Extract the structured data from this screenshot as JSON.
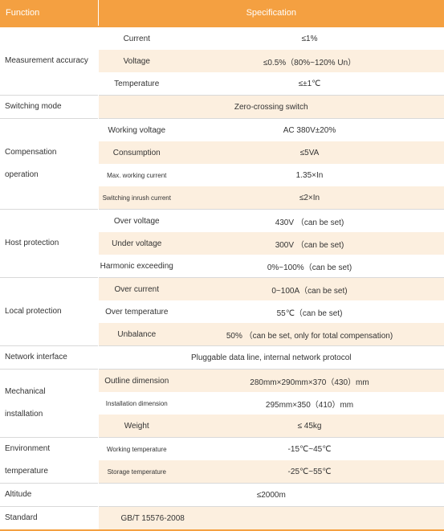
{
  "header": {
    "function": "Function",
    "specification": "Specification"
  },
  "rows": {
    "measurement": {
      "label": "Measurement accuracy",
      "items": [
        {
          "param": "Current",
          "spec": "≤1%"
        },
        {
          "param": "Voltage",
          "spec": "≤0.5%（80%~120% Un）"
        },
        {
          "param": "Temperature",
          "spec": "≤±1℃"
        }
      ]
    },
    "switching": {
      "label": "Switching mode",
      "spec": "Zero-crossing switch"
    },
    "compensation": {
      "label_line1": "Compensation",
      "label_line2": "operation",
      "items": [
        {
          "param": "Working voltage",
          "spec": "AC 380V±20%"
        },
        {
          "param": "Consumption",
          "spec": "≤5VA"
        },
        {
          "param": "Max. working current",
          "spec": "1.35×In"
        },
        {
          "param": "Switching inrush current",
          "spec": "≤2×In"
        }
      ]
    },
    "host": {
      "label": "Host protection",
      "items": [
        {
          "param": "Over voltage",
          "spec": "430V （can be set)"
        },
        {
          "param": "Under voltage",
          "spec": "300V （can be set)"
        },
        {
          "param": "Harmonic exceeding",
          "spec": "0%~100%（can be set)"
        }
      ]
    },
    "local": {
      "label": "Local protection",
      "items": [
        {
          "param": "Over current",
          "spec": "0~100A（can be set)"
        },
        {
          "param": "Over temperature",
          "spec": "55℃（can be set)"
        },
        {
          "param": "Unbalance",
          "spec": "50% （can be set, only for total compensation)"
        }
      ]
    },
    "network": {
      "label": "Network interface",
      "spec": "Pluggable data line, internal network protocol"
    },
    "mechanical": {
      "label_line1": "Mechanical",
      "label_line2": "installation",
      "items": [
        {
          "param": "Outline dimension",
          "spec": "280mm×290mm×370（430）mm"
        },
        {
          "param": "Installation dimension",
          "spec": "295mm×350（410）mm"
        },
        {
          "param": "Weight",
          "spec": "≤ 45kg"
        }
      ]
    },
    "environment": {
      "label_line1": "Environment",
      "label_line2": "temperature",
      "items": [
        {
          "param": "Working temperature",
          "spec": "-15℃~45℃"
        },
        {
          "param": "Storage temperature",
          "spec": "-25℃~55℃"
        }
      ]
    },
    "altitude": {
      "label": "Altitude",
      "spec": "≤2000m"
    },
    "standard": {
      "label": "Standard",
      "spec": "GB/T 15576-2008"
    }
  },
  "colors": {
    "header_bg": "#f4a041",
    "shade": "#fcefdf",
    "rule": "#d9d9d9"
  }
}
